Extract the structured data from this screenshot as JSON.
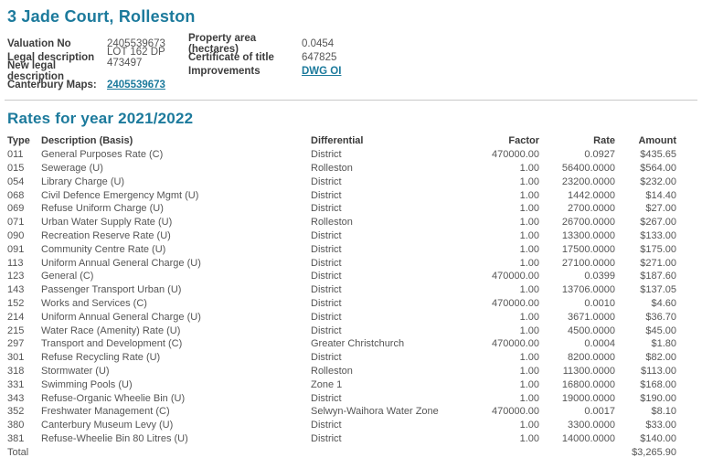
{
  "page": {
    "title": "3 Jade Court, Rolleston"
  },
  "colors": {
    "accent_teal": "#1c7a9c",
    "label_text": "#3d3d3d",
    "body_text": "#555555",
    "divider": "#c9c9c9"
  },
  "details": {
    "rows": [
      {
        "label_left": "Valuation No",
        "value_left": "2405539673",
        "left_link": false,
        "label_right": "Property area (hectares)",
        "value_right": "0.0454",
        "right_link": false
      },
      {
        "label_left": "Legal description",
        "value_left": "LOT 162 DP 473497",
        "left_link": false,
        "label_right": "Certificate of title",
        "value_right": "647825",
        "right_link": false
      },
      {
        "label_left": "New legal description",
        "value_left": "",
        "left_link": false,
        "label_right": "Improvements",
        "value_right": "DWG OI",
        "right_link": true
      },
      {
        "label_left": "Canterbury Maps:",
        "value_left": "2405539673",
        "left_link": true,
        "label_right": "",
        "value_right": "",
        "right_link": false
      }
    ]
  },
  "rates": {
    "heading": "Rates for year 2021/2022",
    "columns": [
      "Type",
      "Description (Basis)",
      "Differential",
      "Factor",
      "Rate",
      "Amount"
    ],
    "rows": [
      [
        "011",
        "General Purposes Rate (C)",
        "District",
        "470000.00",
        "0.0927",
        "$435.65"
      ],
      [
        "015",
        "Sewerage (U)",
        "Rolleston",
        "1.00",
        "56400.0000",
        "$564.00"
      ],
      [
        "054",
        "Library Charge (U)",
        "District",
        "1.00",
        "23200.0000",
        "$232.00"
      ],
      [
        "068",
        "Civil Defence Emergency Mgmt (U)",
        "District",
        "1.00",
        "1442.0000",
        "$14.40"
      ],
      [
        "069",
        "Refuse Uniform Charge (U)",
        "District",
        "1.00",
        "2700.0000",
        "$27.00"
      ],
      [
        "071",
        "Urban Water Supply Rate (U)",
        "Rolleston",
        "1.00",
        "26700.0000",
        "$267.00"
      ],
      [
        "090",
        "Recreation Reserve Rate (U)",
        "District",
        "1.00",
        "13300.0000",
        "$133.00"
      ],
      [
        "091",
        "Community Centre Rate (U)",
        "District",
        "1.00",
        "17500.0000",
        "$175.00"
      ],
      [
        "113",
        "Uniform Annual General Charge (U)",
        "District",
        "1.00",
        "27100.0000",
        "$271.00"
      ],
      [
        "123",
        "General (C)",
        "District",
        "470000.00",
        "0.0399",
        "$187.60"
      ],
      [
        "143",
        "Passenger Transport Urban (U)",
        "District",
        "1.00",
        "13706.0000",
        "$137.05"
      ],
      [
        "152",
        "Works and Services (C)",
        "District",
        "470000.00",
        "0.0010",
        "$4.60"
      ],
      [
        "214",
        "Uniform Annual General Charge (U)",
        "District",
        "1.00",
        "3671.0000",
        "$36.70"
      ],
      [
        "215",
        "Water Race (Amenity) Rate (U)",
        "District",
        "1.00",
        "4500.0000",
        "$45.00"
      ],
      [
        "297",
        "Transport and Development (C)",
        "Greater Christchurch",
        "470000.00",
        "0.0004",
        "$1.80"
      ],
      [
        "301",
        "Refuse Recycling Rate (U)",
        "District",
        "1.00",
        "8200.0000",
        "$82.00"
      ],
      [
        "318",
        "Stormwater (U)",
        "Rolleston",
        "1.00",
        "11300.0000",
        "$113.00"
      ],
      [
        "331",
        "Swimming Pools (U)",
        "Zone 1",
        "1.00",
        "16800.0000",
        "$168.00"
      ],
      [
        "343",
        "Refuse-Organic Wheelie Bin (U)",
        "District",
        "1.00",
        "19000.0000",
        "$190.00"
      ],
      [
        "352",
        "Freshwater Management (C)",
        "Selwyn-Waihora Water Zone",
        "470000.00",
        "0.0017",
        "$8.10"
      ],
      [
        "380",
        "Canterbury Museum Levy (U)",
        "District",
        "1.00",
        "3300.0000",
        "$33.00"
      ],
      [
        "381",
        "Refuse-Wheelie Bin 80 Litres (U)",
        "District",
        "1.00",
        "14000.0000",
        "$140.00"
      ]
    ],
    "total_label": "Total",
    "total_amount": "$3,265.90"
  }
}
